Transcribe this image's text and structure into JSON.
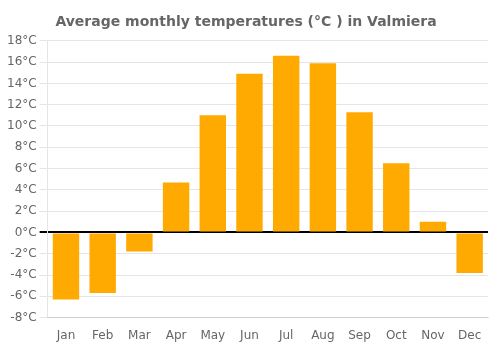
{
  "chart_data": {
    "type": "bar",
    "title": "Average monthly temperatures (°C ) in Valmiera",
    "categories": [
      "Jan",
      "Feb",
      "Mar",
      "Apr",
      "May",
      "Jun",
      "Jul",
      "Aug",
      "Sep",
      "Oct",
      "Nov",
      "Dec"
    ],
    "values": [
      -6.3,
      -5.7,
      -1.8,
      4.7,
      11.0,
      14.9,
      16.6,
      15.9,
      11.3,
      6.5,
      1.0,
      -3.8
    ],
    "color": "#FFAA00",
    "ylim": [
      -8,
      18
    ],
    "yticks": [
      {
        "value": -8,
        "label": "-8°C"
      },
      {
        "value": -6,
        "label": "-6°C"
      },
      {
        "value": -4,
        "label": "-4°C"
      },
      {
        "value": -2,
        "label": "-2°C"
      },
      {
        "value": 0,
        "label": "0°C"
      },
      {
        "value": 2,
        "label": "2°C"
      },
      {
        "value": 4,
        "label": "4°C"
      },
      {
        "value": 6,
        "label": "6°C"
      },
      {
        "value": 8,
        "label": "8°C"
      },
      {
        "value": 10,
        "label": "10°C"
      },
      {
        "value": 12,
        "label": "12°C"
      },
      {
        "value": 14,
        "label": "14°C"
      },
      {
        "value": 16,
        "label": "16°C"
      },
      {
        "value": 18,
        "label": "18°C"
      }
    ],
    "grid": true
  }
}
